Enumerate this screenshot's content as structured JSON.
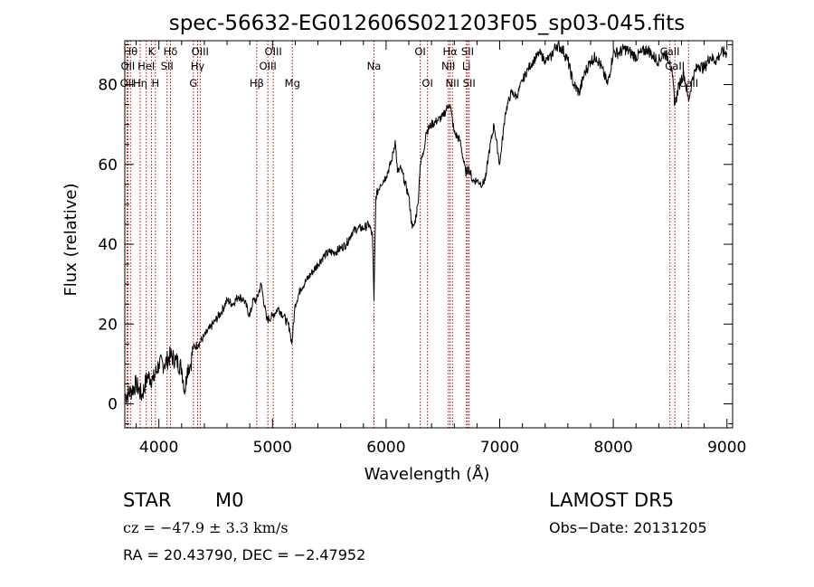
{
  "chart_data": {
    "type": "line",
    "title": "spec-56632-EG012606S021203F05_sp03-045.fits",
    "xlabel": "Wavelength (Å)",
    "ylabel": "Flux (relative)",
    "xlim": [
      3700,
      9050
    ],
    "ylim": [
      -6,
      91
    ],
    "x_ticks": [
      4000,
      5000,
      6000,
      7000,
      8000,
      9000
    ],
    "y_ticks": [
      0,
      20,
      40,
      60,
      80
    ],
    "grid": false,
    "series": [
      {
        "x": [
          3700,
          3750,
          3800,
          3850,
          3900,
          3950,
          4000,
          4050,
          4100,
          4150,
          4200,
          4230,
          4250,
          4280,
          4300,
          4350,
          4400,
          4450,
          4500,
          4550,
          4600,
          4650,
          4700,
          4750,
          4800,
          4830,
          4860,
          4900,
          4950,
          5000,
          5050,
          5100,
          5150,
          5170,
          5200,
          5250,
          5300,
          5350,
          5400,
          5450,
          5500,
          5550,
          5600,
          5650,
          5700,
          5750,
          5800,
          5850,
          5880,
          5893,
          5910,
          5950,
          6000,
          6050,
          6080,
          6100,
          6130,
          6160,
          6200,
          6230,
          6250,
          6280,
          6300,
          6330,
          6350,
          6400,
          6450,
          6500,
          6550,
          6563,
          6600,
          6650,
          6700,
          6730,
          6760,
          6800,
          6850,
          6880,
          6900,
          6950,
          7000,
          7050,
          7100,
          7150,
          7200,
          7250,
          7300,
          7350,
          7400,
          7450,
          7500,
          7550,
          7600,
          7650,
          7700,
          7750,
          7800,
          7850,
          7900,
          7950,
          8000,
          8050,
          8100,
          8150,
          8200,
          8250,
          8300,
          8350,
          8400,
          8450,
          8498,
          8520,
          8542,
          8580,
          8620,
          8662,
          8700,
          8750,
          8800,
          8850,
          8900,
          8950,
          9000
        ],
        "y": [
          2,
          3,
          5,
          2,
          7,
          6,
          10,
          10,
          12,
          11,
          9,
          3,
          9,
          10,
          14,
          15,
          17,
          19,
          21,
          23,
          26,
          25,
          27,
          26,
          22,
          26,
          26,
          30,
          21,
          22,
          24,
          22,
          19,
          15,
          25,
          29,
          31,
          33,
          35,
          37,
          38,
          38,
          39,
          40,
          43,
          44,
          44,
          45,
          42,
          26,
          52,
          55,
          57,
          61,
          66,
          58,
          59,
          56,
          52,
          44,
          45,
          50,
          60,
          63,
          68,
          70,
          71,
          72,
          75,
          75,
          68,
          66,
          58,
          59,
          56,
          56,
          55,
          57,
          62,
          70,
          60,
          73,
          78,
          77,
          81,
          84,
          86,
          88,
          86,
          87,
          90,
          89,
          86,
          80,
          78,
          83,
          86,
          87,
          84,
          80,
          88,
          88,
          89,
          88,
          87,
          88,
          89,
          87,
          86,
          88,
          86,
          82,
          75,
          80,
          83,
          76,
          82,
          85,
          84,
          87,
          86,
          88,
          88
        ]
      }
    ],
    "lines": [
      {
        "wl": 3750,
        "label": "Hθ",
        "row": 1
      },
      {
        "wl": 3727,
        "label": "OII",
        "row": 2
      },
      {
        "wl": 3720,
        "label": "OII",
        "row": 3
      },
      {
        "wl": 3835,
        "label": "Hη",
        "row": 3
      },
      {
        "wl": 3889,
        "label": "HeI",
        "row": 2
      },
      {
        "wl": 3934,
        "label": "K",
        "row": 1
      },
      {
        "wl": 3969,
        "label": "H",
        "row": 3
      },
      {
        "wl": 4102,
        "label": "Hδ",
        "row": 1
      },
      {
        "wl": 4072,
        "label": "SII",
        "row": 2
      },
      {
        "wl": 4341,
        "label": "Hγ",
        "row": 2
      },
      {
        "wl": 4304,
        "label": "G",
        "row": 3
      },
      {
        "wl": 4363,
        "label": "OIII",
        "row": 1
      },
      {
        "wl": 4861,
        "label": "Hβ",
        "row": 3
      },
      {
        "wl": 4959,
        "label": "OIII",
        "row": 2
      },
      {
        "wl": 5007,
        "label": "OIII",
        "row": 1
      },
      {
        "wl": 5175,
        "label": "Mg",
        "row": 3
      },
      {
        "wl": 5893,
        "label": "Na",
        "row": 2
      },
      {
        "wl": 6300,
        "label": "OI",
        "row": 1
      },
      {
        "wl": 6364,
        "label": "OI",
        "row": 3
      },
      {
        "wl": 6548,
        "label": "NII",
        "row": 2
      },
      {
        "wl": 6563,
        "label": "Hα",
        "row": 1
      },
      {
        "wl": 6584,
        "label": "NII",
        "row": 3
      },
      {
        "wl": 6707,
        "label": "Li",
        "row": 2
      },
      {
        "wl": 6717,
        "label": "SII",
        "row": 1
      },
      {
        "wl": 6731,
        "label": "SII",
        "row": 3
      },
      {
        "wl": 8498,
        "label": "CaII",
        "row": 1
      },
      {
        "wl": 8542,
        "label": "CaII",
        "row": 2
      },
      {
        "wl": 8662,
        "label": "CaII",
        "row": 3
      }
    ]
  },
  "info": {
    "class_label": "STAR",
    "subclass_label": "M0",
    "cz_text": "cz = −47.9 ± 3.3 km/s",
    "radec_text": "RA =  20.43790, DEC =  −2.47952",
    "survey_label": "LAMOST  DR5",
    "obs_date_text": "Obs−Date: 20131205"
  },
  "colors": {
    "line_marker": "#c00000",
    "spectrum": "#000000"
  }
}
